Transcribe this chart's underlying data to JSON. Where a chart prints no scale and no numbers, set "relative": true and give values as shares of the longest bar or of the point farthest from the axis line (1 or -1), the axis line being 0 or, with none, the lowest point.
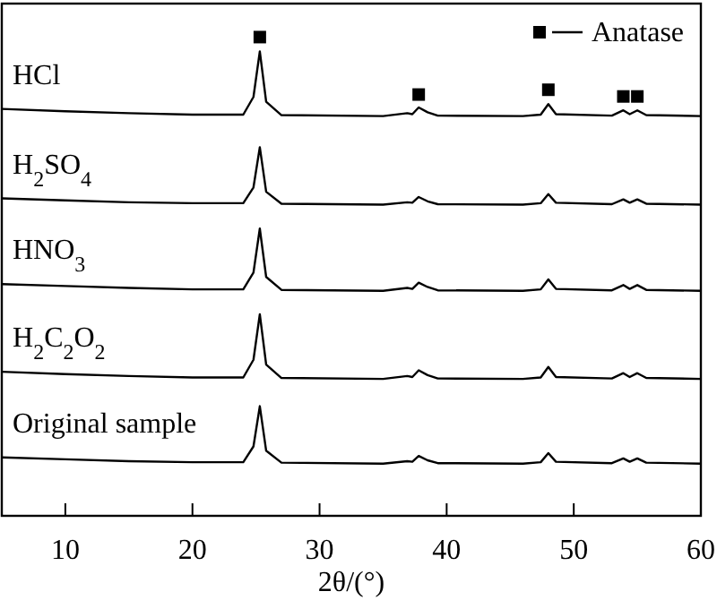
{
  "chart_data": {
    "type": "line",
    "xlabel": "2θ/(°)",
    "xlim": [
      5,
      60
    ],
    "xticks": [
      10,
      20,
      30,
      40,
      50,
      60
    ],
    "relative": true,
    "tick_labels": "x",
    "legend": "top right",
    "grid": false,
    "x": [
      5,
      10,
      15,
      20,
      24,
      24.8,
      25.3,
      25.8,
      27,
      35,
      36.9,
      37.3,
      37.8,
      38.5,
      39.3,
      46,
      47.4,
      48,
      48.6,
      53,
      53.9,
      54.4,
      55,
      55.7,
      60
    ],
    "series": [
      {
        "name": "HCl",
        "color": "#000000",
        "values": [
          0.85,
          0.845,
          0.841,
          0.838,
          0.838,
          0.875,
          0.97,
          0.865,
          0.837,
          0.835,
          0.841,
          0.839,
          0.853,
          0.843,
          0.836,
          0.835,
          0.838,
          0.86,
          0.839,
          0.836,
          0.847,
          0.839,
          0.847,
          0.837,
          0.835
        ]
      },
      {
        "name": "H$_{2}$SO$_{4}$",
        "color": "#000000",
        "values": [
          0.663,
          0.659,
          0.655,
          0.653,
          0.653,
          0.686,
          0.77,
          0.677,
          0.652,
          0.65,
          0.655,
          0.654,
          0.666,
          0.657,
          0.651,
          0.65,
          0.653,
          0.672,
          0.654,
          0.651,
          0.661,
          0.654,
          0.661,
          0.652,
          0.65
        ]
      },
      {
        "name": "HNO$_{3}$",
        "color": "#000000",
        "values": [
          0.484,
          0.48,
          0.476,
          0.473,
          0.473,
          0.508,
          0.6,
          0.499,
          0.472,
          0.47,
          0.476,
          0.474,
          0.487,
          0.478,
          0.471,
          0.47,
          0.473,
          0.494,
          0.474,
          0.471,
          0.482,
          0.474,
          0.482,
          0.472,
          0.47
        ]
      },
      {
        "name": "H$_{2}$C$_{2}$O$_{2}$",
        "color": "#000000",
        "values": [
          0.301,
          0.296,
          0.292,
          0.289,
          0.289,
          0.326,
          0.421,
          0.316,
          0.288,
          0.286,
          0.292,
          0.29,
          0.304,
          0.294,
          0.287,
          0.286,
          0.289,
          0.311,
          0.29,
          0.287,
          0.298,
          0.29,
          0.298,
          0.288,
          0.286
        ]
      },
      {
        "name": "Original sample",
        "color": "#000000",
        "values": [
          0.122,
          0.118,
          0.114,
          0.112,
          0.112,
          0.145,
          0.229,
          0.136,
          0.111,
          0.109,
          0.114,
          0.113,
          0.125,
          0.116,
          0.11,
          0.109,
          0.112,
          0.131,
          0.113,
          0.11,
          0.12,
          0.113,
          0.12,
          0.111,
          0.109
        ]
      },
      {
        "name": "Anatase",
        "type": "scatter",
        "marker": "square",
        "color": "#000000",
        "x": [
          25.3,
          37.8,
          48,
          53.9,
          55
        ],
        "values": [
          1.0,
          0.88,
          0.89,
          0.876,
          0.876
        ]
      }
    ]
  }
}
